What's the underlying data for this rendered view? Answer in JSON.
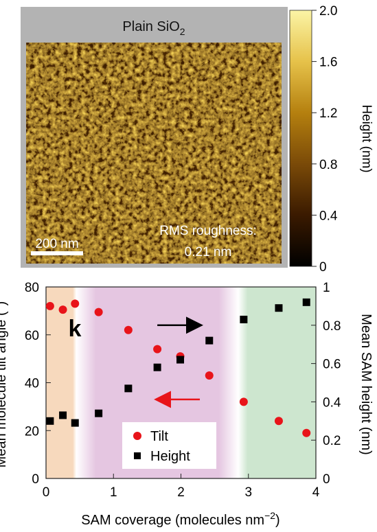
{
  "afm_panel": {
    "title": "Plain SiO",
    "title_subscript": "2",
    "scale_bar_label": "200 nm",
    "rms_line1": "RMS roughness:",
    "rms_line2": "0.21 nm",
    "colorbar": {
      "label": "Height (nm)",
      "ticks": [
        "2.0",
        "1.6",
        "1.2",
        "0.8",
        "0.4",
        "0"
      ],
      "range": [
        0,
        2.0
      ],
      "colors": [
        "#000000",
        "#3a1a00",
        "#7a4a08",
        "#b5800f",
        "#e6c24a",
        "#fbf4a6"
      ]
    }
  },
  "chart_data": {
    "type": "scatter",
    "panel_letter": "k",
    "xlabel": "SAM coverage (molecules nm",
    "xlabel_sup": "−2",
    "xlabel_end": ")",
    "ylabel_left": "Mean molecule tilt angle (°)",
    "ylabel_right": "Mean SAM height (nm)",
    "xlim": [
      0,
      4
    ],
    "ylim_left": [
      0,
      80
    ],
    "ylim_right": [
      0,
      1
    ],
    "x_ticks": [
      "0",
      "1",
      "2",
      "3",
      "4"
    ],
    "y_left_ticks": [
      "0",
      "20",
      "40",
      "60",
      "80"
    ],
    "y_right_ticks": [
      "0",
      "0.2",
      "0.4",
      "0.6",
      "0.8",
      "1"
    ],
    "series": [
      {
        "name": "Tilt",
        "axis": "left",
        "marker": "circle",
        "color": "#e8141a",
        "x": [
          0.06,
          0.25,
          0.43,
          0.78,
          1.22,
          1.65,
          1.99,
          2.42,
          2.93,
          3.45,
          3.86
        ],
        "y": [
          72,
          70.5,
          73,
          69.5,
          62,
          54,
          51,
          43,
          32,
          24,
          19
        ]
      },
      {
        "name": "Height",
        "axis": "right",
        "marker": "square",
        "color": "#000000",
        "x": [
          0.06,
          0.25,
          0.43,
          0.78,
          1.22,
          1.65,
          1.99,
          2.42,
          2.93,
          3.45,
          3.86
        ],
        "y": [
          0.3,
          0.33,
          0.29,
          0.34,
          0.47,
          0.58,
          0.62,
          0.72,
          0.83,
          0.89,
          0.92
        ]
      }
    ],
    "regions": [
      {
        "from": 0,
        "to": 0.45,
        "color": "#f7d9bd"
      },
      {
        "from": 0.45,
        "to": 2.85,
        "color": "#e5c6e1"
      },
      {
        "from": 2.85,
        "to": 4.0,
        "color": "#cde6cf"
      }
    ],
    "annotations": [
      {
        "kind": "arrow",
        "direction": "right",
        "color": "#000000",
        "x_from": 1.65,
        "x_to": 2.28,
        "y_left": 64
      },
      {
        "kind": "arrow",
        "direction": "left",
        "color": "#e8141a",
        "x_from": 2.28,
        "x_to": 1.65,
        "y_left": 33
      }
    ],
    "legend_position": "bottom-center",
    "grid": false
  }
}
